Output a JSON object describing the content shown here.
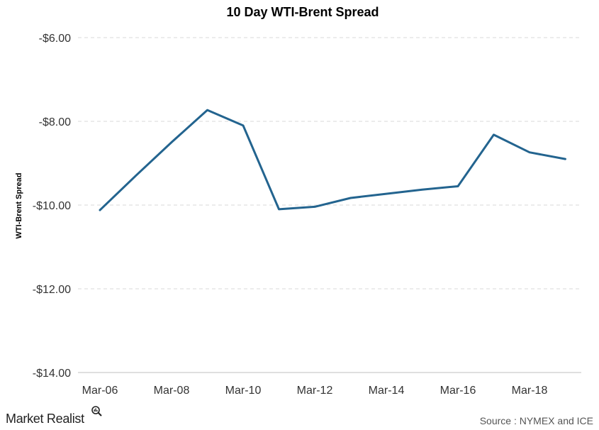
{
  "chart_data": {
    "type": "line",
    "title": "10 Day WTI-Brent  Spread",
    "ylabel": "WTI-Brent Spread",
    "xlabel": "",
    "x": [
      "Mar-06",
      "Mar-07",
      "Mar-08",
      "Mar-09",
      "Mar-10",
      "Mar-11",
      "Mar-12",
      "Mar-13",
      "Mar-14",
      "Mar-15",
      "Mar-16",
      "Mar-17",
      "Mar-18",
      "Mar-19"
    ],
    "x_tick_labels": [
      "Mar-06",
      "Mar-08",
      "Mar-10",
      "Mar-12",
      "Mar-14",
      "Mar-16",
      "Mar-18"
    ],
    "y_tick_labels": [
      "-$6.00",
      "-$8.00",
      "-$10.00",
      "-$12.00",
      "-$14.00"
    ],
    "y_ticks": [
      -6,
      -8,
      -10,
      -12,
      -14
    ],
    "ylim": [
      -14,
      -6
    ],
    "grid": true,
    "series": [
      {
        "values": [
          -10.12,
          -9.3,
          -8.5,
          -7.73,
          -8.1,
          -10.1,
          -10.04,
          -9.83,
          -9.73,
          -9.63,
          -9.55,
          -8.32,
          -8.74,
          -8.9
        ],
        "color": "#23648f"
      }
    ]
  },
  "footer": {
    "source": "Source : NYMEX  and ICE",
    "brand": "Market Realist",
    "brand_icon": "magnifier-icon"
  }
}
